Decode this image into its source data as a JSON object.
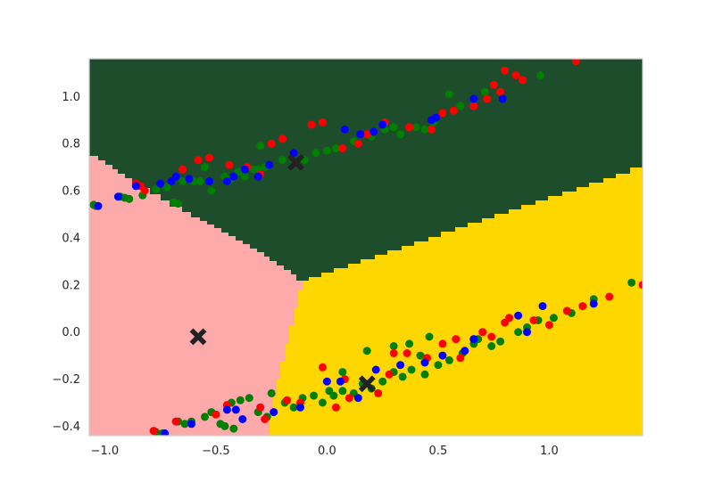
{
  "chart_data": {
    "type": "scatter",
    "title": "",
    "xlabel": "",
    "ylabel": "",
    "xlim": [
      -1.07,
      1.42
    ],
    "ylim": [
      -0.44,
      1.16
    ],
    "grid": false,
    "legend": "none",
    "x_ticks": [
      -1.0,
      -0.5,
      0.0,
      0.5,
      1.0
    ],
    "x_tick_labels": [
      "−1.0",
      "−0.5",
      "0.0",
      "0.5",
      "1.0"
    ],
    "y_ticks": [
      -0.4,
      -0.2,
      0.0,
      0.2,
      0.4,
      0.6,
      0.8,
      1.0
    ],
    "y_tick_labels": [
      "−0.4",
      "−0.2",
      "0.0",
      "0.2",
      "0.4",
      "0.6",
      "0.8",
      "1.0"
    ],
    "regions": [
      {
        "name": "pink-region",
        "color": "#ffaaaa"
      },
      {
        "name": "dark-green-region",
        "color": "#1e4d2b"
      },
      {
        "name": "gold-region",
        "color": "#ffd700"
      }
    ],
    "centroids": [
      {
        "x": -0.58,
        "y": -0.02,
        "color": "#222222"
      },
      {
        "x": -0.14,
        "y": 0.72,
        "color": "#222222"
      },
      {
        "x": 0.18,
        "y": -0.22,
        "color": "#222222"
      }
    ],
    "point_colors": {
      "red": "#ff0000",
      "blue": "#0000ff",
      "green": "#008000"
    },
    "point_series": [
      {
        "color": "green",
        "points": [
          [
            -1.05,
            0.54
          ],
          [
            -1.04,
            0.535
          ],
          [
            -0.93,
            0.575
          ],
          [
            -0.91,
            0.57
          ],
          [
            -0.89,
            0.565
          ],
          [
            -0.83,
            0.58
          ],
          [
            -0.77,
            0.605
          ],
          [
            -0.72,
            0.615
          ],
          [
            -0.69,
            0.55
          ],
          [
            -0.67,
            0.545
          ],
          [
            -0.65,
            0.64
          ],
          [
            -0.6,
            0.64
          ],
          [
            -0.57,
            0.64
          ],
          [
            -0.55,
            0.7
          ],
          [
            -0.52,
            0.6
          ],
          [
            -0.46,
            0.66
          ],
          [
            -0.43,
            0.65
          ],
          [
            -0.4,
            0.68
          ],
          [
            -0.37,
            0.66
          ],
          [
            -0.33,
            0.69
          ],
          [
            -0.31,
            0.69
          ],
          [
            -0.3,
            0.79
          ],
          [
            -0.28,
            0.7
          ],
          [
            -0.2,
            0.73
          ],
          [
            -0.1,
            0.73
          ],
          [
            -0.05,
            0.76
          ],
          [
            0.0,
            0.77
          ],
          [
            0.04,
            0.78
          ],
          [
            0.12,
            0.81
          ],
          [
            0.2,
            0.83
          ],
          [
            0.26,
            0.86
          ],
          [
            0.3,
            0.87
          ],
          [
            0.33,
            0.84
          ],
          [
            0.4,
            0.87
          ],
          [
            0.44,
            0.86
          ],
          [
            0.48,
            0.89
          ],
          [
            0.55,
            1.01
          ],
          [
            0.6,
            0.96
          ],
          [
            0.71,
            1.02
          ],
          [
            0.96,
            1.09
          ],
          [
            -0.78,
            -0.42
          ],
          [
            -0.77,
            -0.425
          ],
          [
            -0.74,
            -0.43
          ],
          [
            -0.67,
            -0.38
          ],
          [
            -0.64,
            -0.39
          ],
          [
            -0.61,
            -0.38
          ],
          [
            -0.55,
            -0.36
          ],
          [
            -0.52,
            -0.34
          ],
          [
            -0.48,
            -0.39
          ],
          [
            -0.46,
            -0.4
          ],
          [
            -0.42,
            -0.41
          ],
          [
            -0.43,
            -0.3
          ],
          [
            -0.39,
            -0.29
          ],
          [
            -0.35,
            -0.28
          ],
          [
            -0.31,
            -0.34
          ],
          [
            -0.27,
            -0.36
          ],
          [
            -0.25,
            -0.26
          ],
          [
            -0.19,
            -0.3
          ],
          [
            -0.15,
            -0.32
          ],
          [
            -0.11,
            -0.28
          ],
          [
            -0.06,
            -0.27
          ],
          [
            -0.02,
            -0.3
          ],
          [
            0.01,
            -0.25
          ],
          [
            0.03,
            -0.27
          ],
          [
            0.07,
            -0.25
          ],
          [
            0.12,
            -0.26
          ],
          [
            0.16,
            -0.22
          ],
          [
            0.2,
            -0.24
          ],
          [
            0.25,
            -0.21
          ],
          [
            0.3,
            -0.17
          ],
          [
            0.34,
            -0.19
          ],
          [
            0.38,
            -0.16
          ],
          [
            0.42,
            -0.1
          ],
          [
            0.44,
            -0.18
          ],
          [
            0.5,
            -0.14
          ],
          [
            0.55,
            -0.12
          ],
          [
            0.61,
            -0.09
          ],
          [
            0.66,
            -0.05
          ],
          [
            0.74,
            -0.06
          ],
          [
            0.78,
            -0.04
          ],
          [
            0.86,
            0.0
          ],
          [
            0.9,
            0.02
          ],
          [
            0.95,
            0.05
          ],
          [
            1.02,
            0.06
          ],
          [
            1.1,
            0.08
          ],
          [
            1.2,
            0.14
          ],
          [
            1.37,
            0.21
          ],
          [
            0.07,
            -0.17
          ],
          [
            0.18,
            -0.08
          ],
          [
            0.3,
            -0.06
          ],
          [
            0.37,
            -0.05
          ],
          [
            0.46,
            -0.02
          ],
          [
            0.68,
            -0.03
          ]
        ]
      },
      {
        "color": "red",
        "points": [
          [
            -0.86,
            0.63
          ],
          [
            -0.84,
            0.62
          ],
          [
            -0.82,
            0.6
          ],
          [
            -0.75,
            0.63
          ],
          [
            -0.65,
            0.69
          ],
          [
            -0.62,
            0.65
          ],
          [
            -0.58,
            0.73
          ],
          [
            -0.53,
            0.74
          ],
          [
            -0.44,
            0.71
          ],
          [
            -0.36,
            0.7
          ],
          [
            -0.3,
            0.67
          ],
          [
            -0.25,
            0.8
          ],
          [
            -0.2,
            0.82
          ],
          [
            -0.07,
            0.88
          ],
          [
            -0.02,
            0.89
          ],
          [
            0.07,
            0.78
          ],
          [
            0.14,
            0.8
          ],
          [
            0.18,
            0.84
          ],
          [
            0.26,
            0.89
          ],
          [
            0.37,
            0.87
          ],
          [
            0.47,
            0.86
          ],
          [
            0.52,
            0.93
          ],
          [
            0.57,
            0.94
          ],
          [
            0.66,
            0.96
          ],
          [
            0.72,
            0.99
          ],
          [
            0.75,
            1.05
          ],
          [
            0.78,
            1.02
          ],
          [
            0.8,
            1.11
          ],
          [
            0.85,
            1.09
          ],
          [
            0.88,
            1.07
          ],
          [
            1.12,
            1.15
          ],
          [
            -0.78,
            -0.42
          ],
          [
            -0.68,
            -0.38
          ],
          [
            -0.5,
            -0.35
          ],
          [
            -0.45,
            -0.31
          ],
          [
            -0.3,
            -0.32
          ],
          [
            -0.28,
            -0.37
          ],
          [
            -0.18,
            -0.29
          ],
          [
            -0.12,
            -0.3
          ],
          [
            -0.02,
            -0.15
          ],
          [
            0.04,
            -0.32
          ],
          [
            0.1,
            -0.28
          ],
          [
            0.08,
            -0.2
          ],
          [
            0.23,
            -0.26
          ],
          [
            0.28,
            -0.18
          ],
          [
            0.3,
            -0.09
          ],
          [
            0.36,
            -0.09
          ],
          [
            0.45,
            -0.11
          ],
          [
            0.52,
            -0.05
          ],
          [
            0.6,
            -0.11
          ],
          [
            0.7,
            0.0
          ],
          [
            0.74,
            -0.02
          ],
          [
            0.82,
            0.06
          ],
          [
            0.93,
            0.05
          ],
          [
            1.0,
            0.03
          ],
          [
            1.08,
            0.09
          ],
          [
            1.15,
            0.11
          ],
          [
            1.27,
            0.15
          ],
          [
            1.42,
            0.2
          ],
          [
            0.58,
            -0.03
          ],
          [
            0.8,
            0.04
          ]
        ]
      },
      {
        "color": "blue",
        "points": [
          [
            -1.03,
            0.535
          ],
          [
            -0.94,
            0.575
          ],
          [
            -0.86,
            0.62
          ],
          [
            -0.75,
            0.63
          ],
          [
            -0.7,
            0.64
          ],
          [
            -0.68,
            0.66
          ],
          [
            -0.62,
            0.65
          ],
          [
            -0.53,
            0.64
          ],
          [
            -0.45,
            0.64
          ],
          [
            -0.42,
            0.66
          ],
          [
            -0.37,
            0.69
          ],
          [
            -0.31,
            0.66
          ],
          [
            -0.26,
            0.71
          ],
          [
            -0.15,
            0.76
          ],
          [
            0.08,
            0.86
          ],
          [
            0.15,
            0.84
          ],
          [
            0.21,
            0.85
          ],
          [
            0.25,
            0.88
          ],
          [
            0.47,
            0.9
          ],
          [
            0.49,
            0.91
          ],
          [
            0.66,
            0.99
          ],
          [
            0.79,
            0.99
          ],
          [
            -0.73,
            -0.43
          ],
          [
            -0.61,
            -0.39
          ],
          [
            -0.45,
            -0.33
          ],
          [
            -0.41,
            -0.33
          ],
          [
            -0.38,
            -0.37
          ],
          [
            -0.24,
            -0.34
          ],
          [
            -0.12,
            -0.32
          ],
          [
            0.0,
            -0.21
          ],
          [
            0.06,
            -0.21
          ],
          [
            0.14,
            -0.28
          ],
          [
            0.22,
            -0.16
          ],
          [
            0.33,
            -0.14
          ],
          [
            0.44,
            -0.13
          ],
          [
            0.52,
            -0.1
          ],
          [
            0.62,
            -0.08
          ],
          [
            0.66,
            -0.03
          ],
          [
            0.86,
            0.07
          ],
          [
            0.9,
            0.0
          ],
          [
            0.97,
            0.11
          ],
          [
            1.2,
            0.12
          ]
        ]
      }
    ]
  }
}
